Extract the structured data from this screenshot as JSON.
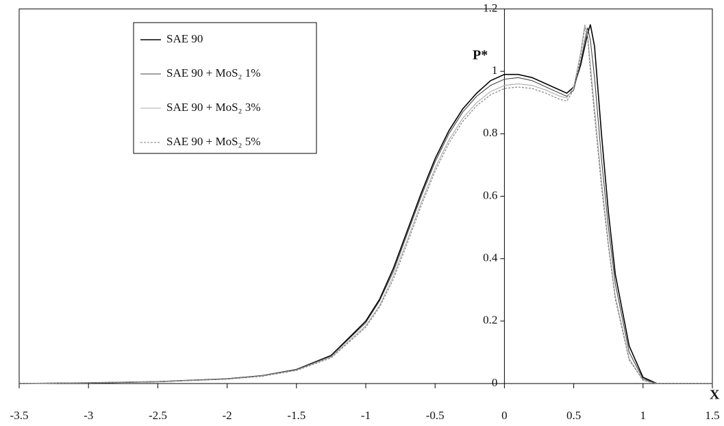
{
  "chart_data": {
    "type": "line",
    "y_label": "P*",
    "x_label": "X",
    "xlim": [
      -3.5,
      1.5
    ],
    "ylim": [
      0,
      1.2
    ],
    "xticks": [
      -3.5,
      -3,
      -2.5,
      -2,
      -1.5,
      -1,
      -0.5,
      0,
      0.5,
      1,
      1.5
    ],
    "yticks": [
      0,
      0.2,
      0.4,
      0.6,
      0.8,
      1,
      1.2
    ],
    "legend": "upper-left",
    "x": [
      -3.5,
      -3,
      -2.5,
      -2,
      -1.75,
      -1.5,
      -1.25,
      -1,
      -0.9,
      -0.8,
      -0.7,
      -0.6,
      -0.5,
      -0.4,
      -0.3,
      -0.2,
      -0.1,
      0,
      0.1,
      0.2,
      0.3,
      0.4,
      0.45,
      0.5,
      0.55,
      0.58,
      0.6,
      0.62,
      0.65,
      0.7,
      0.75,
      0.8,
      0.9,
      1,
      1.1,
      1.5
    ],
    "series": [
      {
        "name": "SAE 90",
        "color": "#000000",
        "dash": false,
        "values": [
          0,
          0.002,
          0.006,
          0.015,
          0.025,
          0.045,
          0.09,
          0.2,
          0.27,
          0.37,
          0.49,
          0.61,
          0.72,
          0.81,
          0.88,
          0.93,
          0.97,
          0.99,
          0.99,
          0.98,
          0.96,
          0.94,
          0.93,
          0.95,
          1.02,
          1.08,
          1.12,
          1.15,
          1.08,
          0.8,
          0.55,
          0.35,
          0.12,
          0.02,
          0,
          0
        ]
      },
      {
        "name": "SAE 90 + MoS₂ 1%",
        "color": "#444444",
        "dash": false,
        "values": [
          0,
          0.002,
          0.006,
          0.015,
          0.025,
          0.045,
          0.088,
          0.195,
          0.265,
          0.36,
          0.48,
          0.6,
          0.71,
          0.8,
          0.87,
          0.92,
          0.955,
          0.975,
          0.98,
          0.97,
          0.95,
          0.93,
          0.92,
          0.94,
          1.03,
          1.1,
          1.14,
          1.1,
          0.98,
          0.72,
          0.5,
          0.32,
          0.1,
          0.015,
          0,
          0
        ]
      },
      {
        "name": "SAE 90 + MoS₂ 3%",
        "color": "#aaaaaa",
        "dash": false,
        "values": [
          0,
          0.002,
          0.006,
          0.014,
          0.024,
          0.043,
          0.085,
          0.185,
          0.25,
          0.345,
          0.46,
          0.58,
          0.69,
          0.78,
          0.85,
          0.9,
          0.935,
          0.955,
          0.96,
          0.955,
          0.94,
          0.92,
          0.915,
          0.95,
          1.06,
          1.15,
          1.12,
          1.02,
          0.88,
          0.65,
          0.45,
          0.28,
          0.08,
          0.01,
          0,
          0
        ]
      },
      {
        "name": "SAE 90 + MoS₂ 5%",
        "color": "#777777",
        "dash": true,
        "values": [
          0,
          0.002,
          0.006,
          0.014,
          0.023,
          0.042,
          0.082,
          0.18,
          0.245,
          0.335,
          0.45,
          0.57,
          0.68,
          0.77,
          0.84,
          0.89,
          0.925,
          0.945,
          0.95,
          0.945,
          0.93,
          0.91,
          0.905,
          0.94,
          1.05,
          1.14,
          1.11,
          1.0,
          0.86,
          0.63,
          0.44,
          0.27,
          0.075,
          0.01,
          0,
          0
        ]
      }
    ]
  }
}
